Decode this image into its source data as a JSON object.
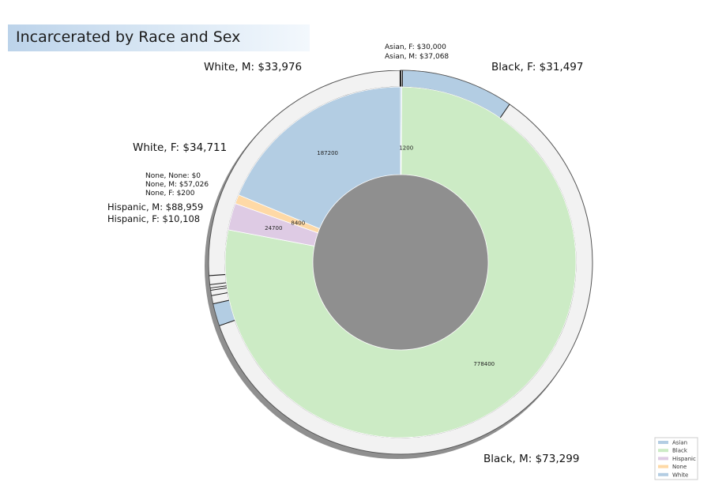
{
  "title": "Incarcerated by Race and Sex",
  "chart_data": {
    "type": "pie",
    "variant": "nested-donut",
    "title": "Incarcerated by Race and Sex",
    "inner_ring": [
      {
        "category": "Asian",
        "value": 1200,
        "color": "#b3cde3"
      },
      {
        "category": "Black",
        "value": 778400,
        "color": "#ccebc5"
      },
      {
        "category": "Hispanic",
        "value": 24700,
        "color": "#decbe4"
      },
      {
        "category": "None",
        "value": 8400,
        "color": "#fed9a6"
      },
      {
        "category": "White",
        "value": 187200,
        "color": "#b3cde3"
      }
    ],
    "outer_ring_labels": [
      {
        "race": "Asian",
        "sex": "F",
        "amount": "$30,000",
        "label": "Asian, F: $30,000"
      },
      {
        "race": "Asian",
        "sex": "M",
        "amount": "$37,068",
        "label": "Asian, M: $37,068"
      },
      {
        "race": "Black",
        "sex": "F",
        "amount": "$31,497",
        "label": "Black, F: $31,497"
      },
      {
        "race": "Black",
        "sex": "M",
        "amount": "$73,299",
        "label": "Black, M: $73,299"
      },
      {
        "race": "Hispanic",
        "sex": "F",
        "amount": "$10,108",
        "label": "Hispanic, F: $10,108"
      },
      {
        "race": "Hispanic",
        "sex": "M",
        "amount": "$88,959",
        "label": "Hispanic, M: $88,959"
      },
      {
        "race": "None",
        "sex": "F",
        "amount": "$200",
        "label": "None, F: $200"
      },
      {
        "race": "None",
        "sex": "M",
        "amount": "$57,026",
        "label": "None, M: $57,026"
      },
      {
        "race": "None",
        "sex": "None",
        "amount": "$0",
        "label": "None, None: $0"
      },
      {
        "race": "White",
        "sex": "F",
        "amount": "$34,711",
        "label": "White, F: $34,711"
      },
      {
        "race": "White",
        "sex": "M",
        "amount": "$33,976",
        "label": "White, M: $33,976"
      }
    ],
    "legend": {
      "placement": "bottom-right",
      "entries": [
        {
          "name": "Asian",
          "color": "#b3cde3"
        },
        {
          "name": "Black",
          "color": "#ccebc5"
        },
        {
          "name": "Hispanic",
          "color": "#decbe4"
        },
        {
          "name": "None",
          "color": "#fed9a6"
        },
        {
          "name": "White",
          "color": "#b3cde3"
        }
      ]
    },
    "outer_ring_colors": {
      "highlight": "#b3cde3",
      "base": "#f2f2f2"
    }
  }
}
